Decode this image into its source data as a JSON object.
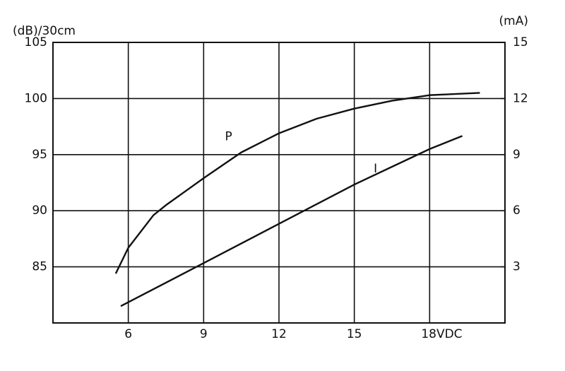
{
  "chart_data": {
    "type": "line",
    "y_label": "(dB)/30cm",
    "y2_label": "(mA)",
    "xlim": [
      3,
      21
    ],
    "xticks": [
      6,
      9,
      12,
      15,
      {
        "value": 18,
        "label": "18VDC"
      }
    ],
    "ylim": [
      80,
      105
    ],
    "yticks": [
      85,
      90,
      95,
      100,
      105
    ],
    "y2lim": [
      0,
      15
    ],
    "y2ticks": [
      3,
      6,
      9,
      12,
      15
    ],
    "grid": true,
    "series": [
      {
        "name": "P",
        "color": "#111111",
        "x": [
          5.5,
          6,
          7,
          7.5,
          9,
          10.5,
          12,
          13.5,
          15,
          16.5,
          18,
          20
        ],
        "values": [
          84.4,
          86.7,
          89.6,
          90.5,
          92.9,
          95.2,
          96.9,
          98.2,
          99.1,
          99.8,
          100.3,
          100.5
        ]
      },
      {
        "name": "I",
        "color": "#111111",
        "axis": "y2",
        "x": [
          5.7,
          9,
          12,
          15,
          18,
          19.3
        ],
        "values": [
          0.9,
          3.2,
          5.3,
          7.4,
          9.3,
          10.0
        ]
      }
    ]
  }
}
